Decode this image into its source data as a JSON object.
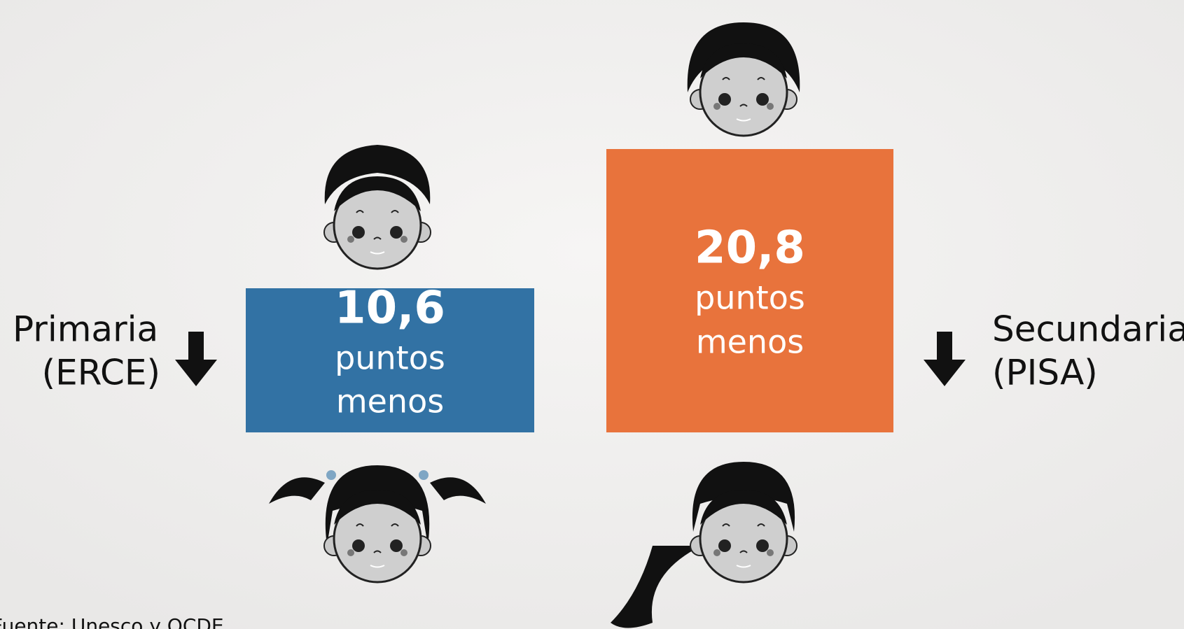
{
  "left": {
    "level": "Primaria",
    "test": "(ERCE)",
    "value": "10,6",
    "unit_line1": "puntos",
    "unit_line2": "menos"
  },
  "right": {
    "level": "Secundaria",
    "test": "(PISA)",
    "value": "20,8",
    "unit_line1": "puntos",
    "unit_line2": "menos"
  },
  "source": "Fuente: Unesco y OCDE"
}
